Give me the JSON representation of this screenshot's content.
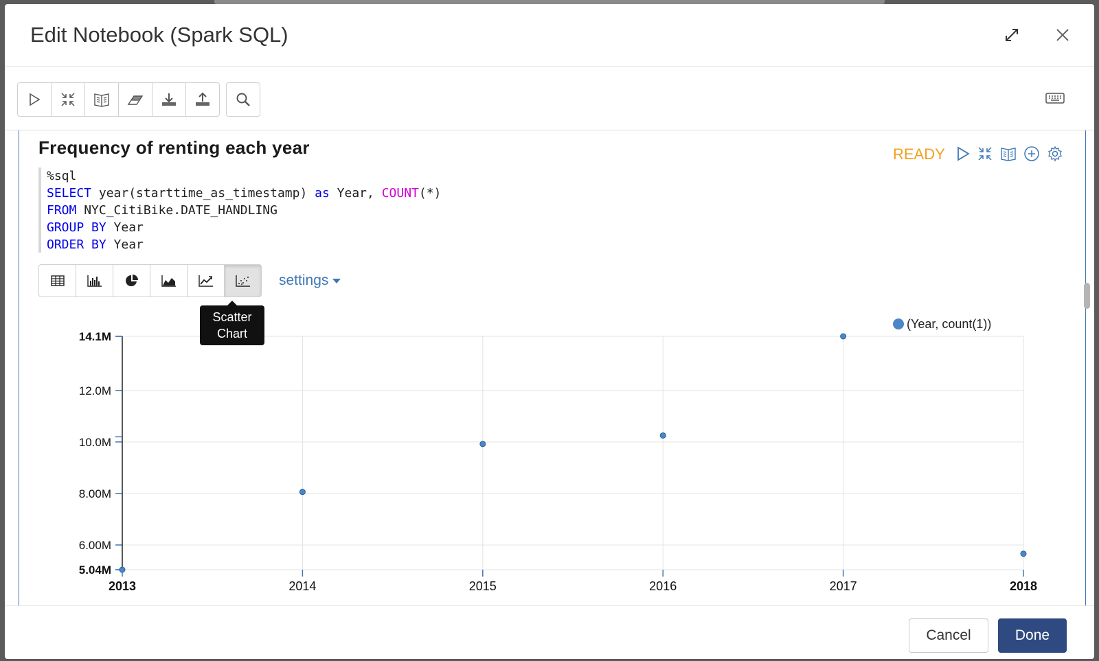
{
  "modal": {
    "title": "Edit Notebook (Spark SQL)"
  },
  "toolbar": {
    "icons": [
      "play-icon",
      "collapse-icon",
      "book-icon",
      "eraser-icon",
      "download-icon",
      "upload-icon",
      "search-icon",
      "keyboard-icon"
    ]
  },
  "paragraph": {
    "title": "Frequency of renting each year",
    "status": "READY",
    "status_color": "#f0a020",
    "code": {
      "line1": "%sql",
      "line2_kw1": "SELECT",
      "line2_mid": " year(starttime_as_timestamp) ",
      "line2_kw2": "as",
      "line2_mid2": " Year, ",
      "line2_fn": "COUNT",
      "line2_end": "(*)",
      "line3_kw": "FROM",
      "line3_rest": " NYC_CitiBike.DATE_HANDLING",
      "line4_kw": "GROUP BY",
      "line4_rest": " Year",
      "line5_kw": "ORDER BY",
      "line5_rest": " Year"
    },
    "viz_buttons": [
      "table-icon",
      "bar-chart-icon",
      "pie-chart-icon",
      "area-chart-icon",
      "line-chart-icon",
      "scatter-chart-icon"
    ],
    "settings_label": "settings",
    "tooltip": {
      "line1": "Scatter",
      "line2": "Chart"
    }
  },
  "chart_data": {
    "type": "scatter",
    "title": "",
    "xlabel": "",
    "ylabel": "",
    "legend": "(Year, count(1))",
    "legend_position": "top-right",
    "series_color": "#4a86c8",
    "x": [
      2013,
      2014,
      2015,
      2016,
      2017,
      2018
    ],
    "values": [
      5040000,
      8060000,
      9920000,
      10250000,
      14100000,
      5660000
    ],
    "xlim": [
      2013,
      2018
    ],
    "ylim": [
      5040000,
      14100000
    ],
    "x_ticks": [
      "2013",
      "2014",
      "2015",
      "2016",
      "2017",
      "2018"
    ],
    "y_ticks": [
      {
        "value": 14100000,
        "label": "14.1M",
        "bold": true
      },
      {
        "value": 12000000,
        "label": "12.0M",
        "bold": false
      },
      {
        "value": 10000000,
        "label": "10.0M",
        "bold": false
      },
      {
        "value": 8000000,
        "label": "8.00M",
        "bold": false
      },
      {
        "value": 6000000,
        "label": "6.00M",
        "bold": false
      },
      {
        "value": 5040000,
        "label": "5.04M",
        "bold": true
      }
    ],
    "grid": true
  },
  "footer": {
    "cancel_label": "Cancel",
    "done_label": "Done"
  }
}
